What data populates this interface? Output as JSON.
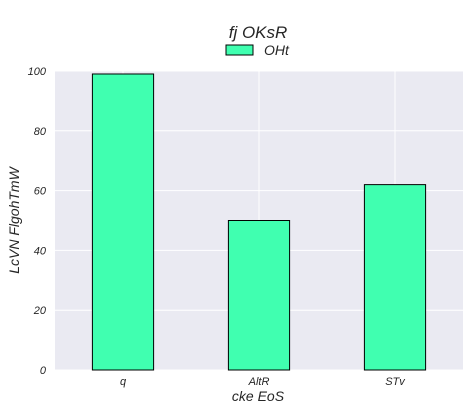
{
  "chart_data": {
    "type": "bar",
    "title": "fj OKsR",
    "xlabel": "cke EoS",
    "ylabel": "LcVN FlgohTmW",
    "categories": [
      "q",
      "AltR",
      "STv"
    ],
    "series": [
      {
        "name": "OHt",
        "values": [
          99,
          50,
          62
        ]
      }
    ],
    "ylim": [
      0,
      100
    ],
    "yticks": [
      0,
      20,
      40,
      60,
      80,
      100
    ],
    "grid": true,
    "legend": "top-center",
    "colors": {
      "bar_fill": "#40ffb0",
      "bar_edge": "#000000",
      "plot_background": "#eaeaf2",
      "grid": "#ffffff"
    }
  }
}
